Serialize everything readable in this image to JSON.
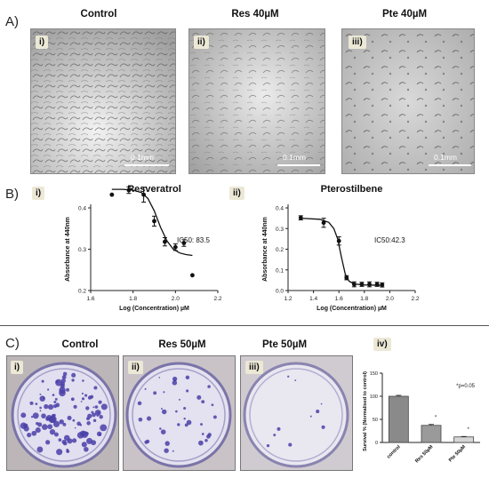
{
  "panel_a": {
    "letter": "A)",
    "columns": [
      {
        "title": "Control",
        "label": "i)",
        "scale": "0.1mm"
      },
      {
        "title": "Res 40µM",
        "label": "ii)",
        "scale": "0.1mm"
      },
      {
        "title": "Pte 40µM",
        "label": "iii)",
        "scale": "0.1mm"
      }
    ]
  },
  "panel_b": {
    "letter": "B)",
    "plots": [
      {
        "label": "i)",
        "title": "Resveratrol",
        "ic50": "IC50: 83.5",
        "ylabel": "Absorbance at 440nm",
        "xlabel": "Log (Concentration) µM"
      },
      {
        "label": "ii)",
        "title": "Pterostilbene",
        "ic50": "IC50:42.3",
        "ylabel": "Absorbance at 440nm",
        "xlabel": "Log (Concentration) µM"
      }
    ]
  },
  "panel_c": {
    "letter": "C)",
    "dishes": [
      {
        "title": "Control",
        "label": "i)"
      },
      {
        "title": "Res 50µM",
        "label": "ii)"
      },
      {
        "title": "Pte 50µM",
        "label": "iii)"
      }
    ],
    "bar_label": "iv)"
  },
  "chart_data": [
    {
      "type": "scatter",
      "title": "Resveratrol",
      "xlabel": "Log (Concentration) µM",
      "ylabel": "Absorbance at 440nm",
      "xlim": [
        1.6,
        2.2
      ],
      "ylim": [
        0.2,
        0.4
      ],
      "xticks": [
        "1.6",
        "1.8",
        "2.0",
        "2.2"
      ],
      "yticks": [
        "0.2",
        "0.3",
        "0.4"
      ],
      "annotation": "IC50: 83.5",
      "points": [
        {
          "x": 1.7,
          "y": 0.432,
          "err": 0.0
        },
        {
          "x": 1.78,
          "y": 0.443,
          "err": 0.008
        },
        {
          "x": 1.85,
          "y": 0.432,
          "err": 0.018
        },
        {
          "x": 1.9,
          "y": 0.368,
          "err": 0.012
        },
        {
          "x": 1.95,
          "y": 0.318,
          "err": 0.01
        },
        {
          "x": 2.0,
          "y": 0.305,
          "err": 0.008
        },
        {
          "x": 2.04,
          "y": 0.315,
          "err": 0.008
        },
        {
          "x": 2.08,
          "y": 0.237,
          "err": 0.0
        }
      ],
      "fit": [
        [
          1.7,
          0.445
        ],
        [
          1.75,
          0.445
        ],
        [
          1.8,
          0.443
        ],
        [
          1.84,
          0.437
        ],
        [
          1.87,
          0.423
        ],
        [
          1.9,
          0.393
        ],
        [
          1.93,
          0.353
        ],
        [
          1.96,
          0.32
        ],
        [
          1.99,
          0.3
        ],
        [
          2.02,
          0.291
        ],
        [
          2.05,
          0.287
        ],
        [
          2.08,
          0.285
        ]
      ]
    },
    {
      "type": "scatter",
      "title": "Pterostilbene",
      "xlabel": "Log (Concentration) µM",
      "ylabel": "Absorbance at 440nm",
      "xlim": [
        1.2,
        2.2
      ],
      "ylim": [
        0.0,
        0.4
      ],
      "xticks": [
        "1.2",
        "1.4",
        "1.6",
        "1.8",
        "2.0",
        "2.2"
      ],
      "yticks": [
        "0.0",
        "0.1",
        "0.2",
        "0.3",
        "0.4"
      ],
      "annotation": "IC50:42.3",
      "points": [
        {
          "x": 1.3,
          "y": 0.352,
          "err": 0.01
        },
        {
          "x": 1.48,
          "y": 0.328,
          "err": 0.022
        },
        {
          "x": 1.6,
          "y": 0.24,
          "err": 0.02
        },
        {
          "x": 1.66,
          "y": 0.062,
          "err": 0.01
        },
        {
          "x": 1.72,
          "y": 0.03,
          "err": 0.012
        },
        {
          "x": 1.78,
          "y": 0.03,
          "err": 0.01
        },
        {
          "x": 1.84,
          "y": 0.03,
          "err": 0.012
        },
        {
          "x": 1.9,
          "y": 0.03,
          "err": 0.01
        },
        {
          "x": 1.94,
          "y": 0.027,
          "err": 0.01
        }
      ],
      "fit": [
        [
          1.3,
          0.35
        ],
        [
          1.45,
          0.345
        ],
        [
          1.52,
          0.33
        ],
        [
          1.56,
          0.3
        ],
        [
          1.59,
          0.25
        ],
        [
          1.62,
          0.16
        ],
        [
          1.65,
          0.08
        ],
        [
          1.68,
          0.045
        ],
        [
          1.72,
          0.032
        ],
        [
          1.8,
          0.027
        ],
        [
          1.95,
          0.025
        ]
      ]
    },
    {
      "type": "bar",
      "title": "",
      "ylabel": "Survival % (Normalised to control)",
      "categories": [
        "control",
        "Res 50µM",
        "Pte 50µM"
      ],
      "values": [
        100,
        37,
        12
      ],
      "errors": [
        2,
        2,
        1
      ],
      "significance": [
        "",
        "*",
        "*"
      ],
      "annotation": "*p=0.05",
      "ylim": [
        0,
        150
      ],
      "yticks": [
        "0",
        "50",
        "100",
        "150"
      ],
      "colors": [
        "#8a8a8a",
        "#9a9a9a",
        "#d6d6d6"
      ]
    }
  ]
}
